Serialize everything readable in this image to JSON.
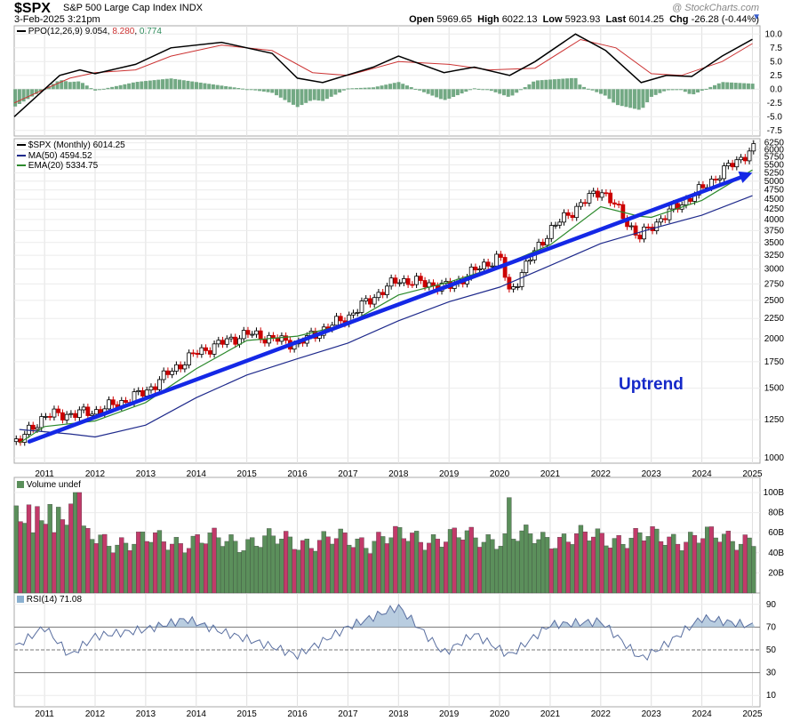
{
  "header": {
    "symbol": "$SPX",
    "name": "S&P 500 Large Cap Index",
    "exchange": "INDX",
    "datetime": "3-Feb-2025 3:21pm",
    "watermark": "@ StockCharts.com",
    "open_label": "Open",
    "open": "5969.65",
    "high_label": "High",
    "high": "6022.13",
    "low_label": "Low",
    "low": "5923.93",
    "last_label": "Last",
    "last": "6014.25",
    "chg_label": "Chg",
    "chg": "-26.28 (-0.44%)"
  },
  "legends": {
    "ppo_name": "PPO(12,26,9)",
    "ppo_value": "9.054",
    "ppo_signal": "8.280",
    "ppo_hist": "0.774",
    "price_name": "$SPX (Monthly)",
    "price_value": "6014.25",
    "ma_name": "MA(50)",
    "ma_value": "4594.52",
    "ema_name": "EMA(20)",
    "ema_value": "5334.75",
    "volume_name": "Volume undef",
    "rsi_name": "RSI(14)",
    "rsi_value": "71.08",
    "annotation": "Uptrend"
  },
  "chart_data": {
    "type": "line",
    "x_axis_years": [
      "2011",
      "2012",
      "2013",
      "2014",
      "2015",
      "2016",
      "2017",
      "2018",
      "2019",
      "2020",
      "2021",
      "2022",
      "2023",
      "2024",
      "2025"
    ],
    "ppo_ticks": [
      "10.0",
      "7.5",
      "5.0",
      "2.5",
      "0.0",
      "-2.5",
      "-5.0",
      "-7.5"
    ],
    "price_ticks": [
      "6250",
      "6000",
      "5750",
      "5500",
      "5250",
      "5000",
      "4750",
      "4500",
      "4250",
      "4000",
      "3750",
      "3500",
      "3250",
      "3000",
      "2750",
      "2500",
      "2250",
      "2000",
      "1750",
      "1500",
      "1250",
      "1000"
    ],
    "volume_ticks": [
      "100B",
      "80B",
      "60B",
      "40B",
      "20B"
    ],
    "rsi_ticks": [
      "90",
      "70",
      "50",
      "30",
      "10"
    ],
    "price_yearly": [
      {
        "year": 2010.5,
        "close": 1100
      },
      {
        "year": 2011,
        "close": 1280
      },
      {
        "year": 2011.5,
        "close": 1290
      },
      {
        "year": 2012,
        "close": 1310
      },
      {
        "year": 2012.5,
        "close": 1380
      },
      {
        "year": 2013,
        "close": 1470
      },
      {
        "year": 2014,
        "close": 1840
      },
      {
        "year": 2015,
        "close": 2060
      },
      {
        "year": 2016,
        "close": 1940
      },
      {
        "year": 2017,
        "close": 2270
      },
      {
        "year": 2018,
        "close": 2820
      },
      {
        "year": 2019,
        "close": 2700
      },
      {
        "year": 2020,
        "close": 3230
      },
      {
        "year": 2020.2,
        "close": 2590
      },
      {
        "year": 2021,
        "close": 3760
      },
      {
        "year": 2022,
        "close": 4770
      },
      {
        "year": 2022.75,
        "close": 3590
      },
      {
        "year": 2023,
        "close": 3840
      },
      {
        "year": 2024,
        "close": 4770
      },
      {
        "year": 2025,
        "close": 6014
      }
    ],
    "ma50": [
      {
        "year": 2010.5,
        "v": 1180
      },
      {
        "year": 2011.5,
        "v": 1150
      },
      {
        "year": 2012,
        "v": 1130
      },
      {
        "year": 2013,
        "v": 1210
      },
      {
        "year": 2014,
        "v": 1420
      },
      {
        "year": 2015,
        "v": 1620
      },
      {
        "year": 2016,
        "v": 1780
      },
      {
        "year": 2017,
        "v": 1950
      },
      {
        "year": 2018,
        "v": 2220
      },
      {
        "year": 2019,
        "v": 2480
      },
      {
        "year": 2020,
        "v": 2700
      },
      {
        "year": 2021,
        "v": 3060
      },
      {
        "year": 2022,
        "v": 3480
      },
      {
        "year": 2023,
        "v": 3790
      },
      {
        "year": 2024,
        "v": 4100
      },
      {
        "year": 2025,
        "v": 4594.52
      }
    ],
    "ema20": [
      {
        "year": 2010.5,
        "v": 1090
      },
      {
        "year": 2011,
        "v": 1200
      },
      {
        "year": 2012,
        "v": 1240
      },
      {
        "year": 2013,
        "v": 1380
      },
      {
        "year": 2014,
        "v": 1680
      },
      {
        "year": 2015,
        "v": 1980
      },
      {
        "year": 2016,
        "v": 2030
      },
      {
        "year": 2017,
        "v": 2180
      },
      {
        "year": 2018,
        "v": 2580
      },
      {
        "year": 2019,
        "v": 2780
      },
      {
        "year": 2020,
        "v": 3050
      },
      {
        "year": 2021,
        "v": 3450
      },
      {
        "year": 2022,
        "v": 4310
      },
      {
        "year": 2022.75,
        "v": 4080
      },
      {
        "year": 2023,
        "v": 4050
      },
      {
        "year": 2024,
        "v": 4470
      },
      {
        "year": 2025,
        "v": 5334.75
      }
    ],
    "ppo_line": [
      {
        "year": 2010.4,
        "v": -5.0
      },
      {
        "year": 2011.0,
        "v": 0.0
      },
      {
        "year": 2011.3,
        "v": 2.5
      },
      {
        "year": 2011.7,
        "v": 3.5
      },
      {
        "year": 2012.0,
        "v": 2.8
      },
      {
        "year": 2012.8,
        "v": 4.5
      },
      {
        "year": 2013.5,
        "v": 7.5
      },
      {
        "year": 2014.5,
        "v": 8.5
      },
      {
        "year": 2015.5,
        "v": 6.5
      },
      {
        "year": 2016.0,
        "v": 2.0
      },
      {
        "year": 2016.5,
        "v": 1.2
      },
      {
        "year": 2017.5,
        "v": 4.0
      },
      {
        "year": 2018.0,
        "v": 6.0
      },
      {
        "year": 2018.9,
        "v": 3.0
      },
      {
        "year": 2019.5,
        "v": 4.0
      },
      {
        "year": 2020.2,
        "v": 2.5
      },
      {
        "year": 2020.7,
        "v": 5.0
      },
      {
        "year": 2021.5,
        "v": 10.0
      },
      {
        "year": 2022.1,
        "v": 7.0
      },
      {
        "year": 2022.8,
        "v": 1.2
      },
      {
        "year": 2023.3,
        "v": 2.5
      },
      {
        "year": 2023.8,
        "v": 2.3
      },
      {
        "year": 2024.4,
        "v": 6.0
      },
      {
        "year": 2025.0,
        "v": 9.054
      }
    ],
    "ppo_signal_line": [
      {
        "year": 2010.4,
        "v": -2.5
      },
      {
        "year": 2011.0,
        "v": 0.0
      },
      {
        "year": 2011.5,
        "v": 2.0
      },
      {
        "year": 2012.0,
        "v": 3.0
      },
      {
        "year": 2012.8,
        "v": 3.5
      },
      {
        "year": 2013.5,
        "v": 6.0
      },
      {
        "year": 2014.5,
        "v": 8.0
      },
      {
        "year": 2015.5,
        "v": 7.0
      },
      {
        "year": 2016.3,
        "v": 3.0
      },
      {
        "year": 2017.0,
        "v": 2.5
      },
      {
        "year": 2018.0,
        "v": 5.0
      },
      {
        "year": 2019.0,
        "v": 4.5
      },
      {
        "year": 2019.8,
        "v": 3.5
      },
      {
        "year": 2020.7,
        "v": 3.8
      },
      {
        "year": 2021.6,
        "v": 9.0
      },
      {
        "year": 2022.3,
        "v": 7.5
      },
      {
        "year": 2023.0,
        "v": 2.8
      },
      {
        "year": 2023.6,
        "v": 2.5
      },
      {
        "year": 2024.4,
        "v": 5.0
      },
      {
        "year": 2025.0,
        "v": 8.28
      }
    ],
    "rsi_line": [
      {
        "year": 2010.4,
        "v": 52
      },
      {
        "year": 2011.0,
        "v": 70
      },
      {
        "year": 2011.5,
        "v": 45
      },
      {
        "year": 2012.0,
        "v": 62
      },
      {
        "year": 2013.0,
        "v": 68
      },
      {
        "year": 2013.8,
        "v": 77
      },
      {
        "year": 2014.5,
        "v": 66
      },
      {
        "year": 2015.5,
        "v": 53
      },
      {
        "year": 2016.0,
        "v": 45
      },
      {
        "year": 2017.0,
        "v": 70
      },
      {
        "year": 2018.0,
        "v": 88
      },
      {
        "year": 2018.9,
        "v": 47
      },
      {
        "year": 2019.5,
        "v": 64
      },
      {
        "year": 2020.2,
        "v": 45
      },
      {
        "year": 2021.0,
        "v": 72
      },
      {
        "year": 2022.0,
        "v": 75
      },
      {
        "year": 2022.8,
        "v": 42
      },
      {
        "year": 2023.3,
        "v": 55
      },
      {
        "year": 2024.0,
        "v": 78
      },
      {
        "year": 2025.0,
        "v": 71.08
      }
    ],
    "trend_arrow": {
      "from": {
        "year": 2010.7,
        "v": 1100
      },
      "to": {
        "year": 2025.0,
        "v": 5250
      }
    },
    "colors": {
      "up": "#000000",
      "down": "#cc0000",
      "ppo": "#000000",
      "signal": "#cc3333",
      "hist": "#5a9a6f",
      "ma": "#1f2a8c",
      "ema": "#2d8a2d",
      "trend": "#1428e6",
      "vol_up": "#5b8f5b",
      "vol_down": "#c23a6a",
      "rsi": "#5a6fa0"
    }
  }
}
